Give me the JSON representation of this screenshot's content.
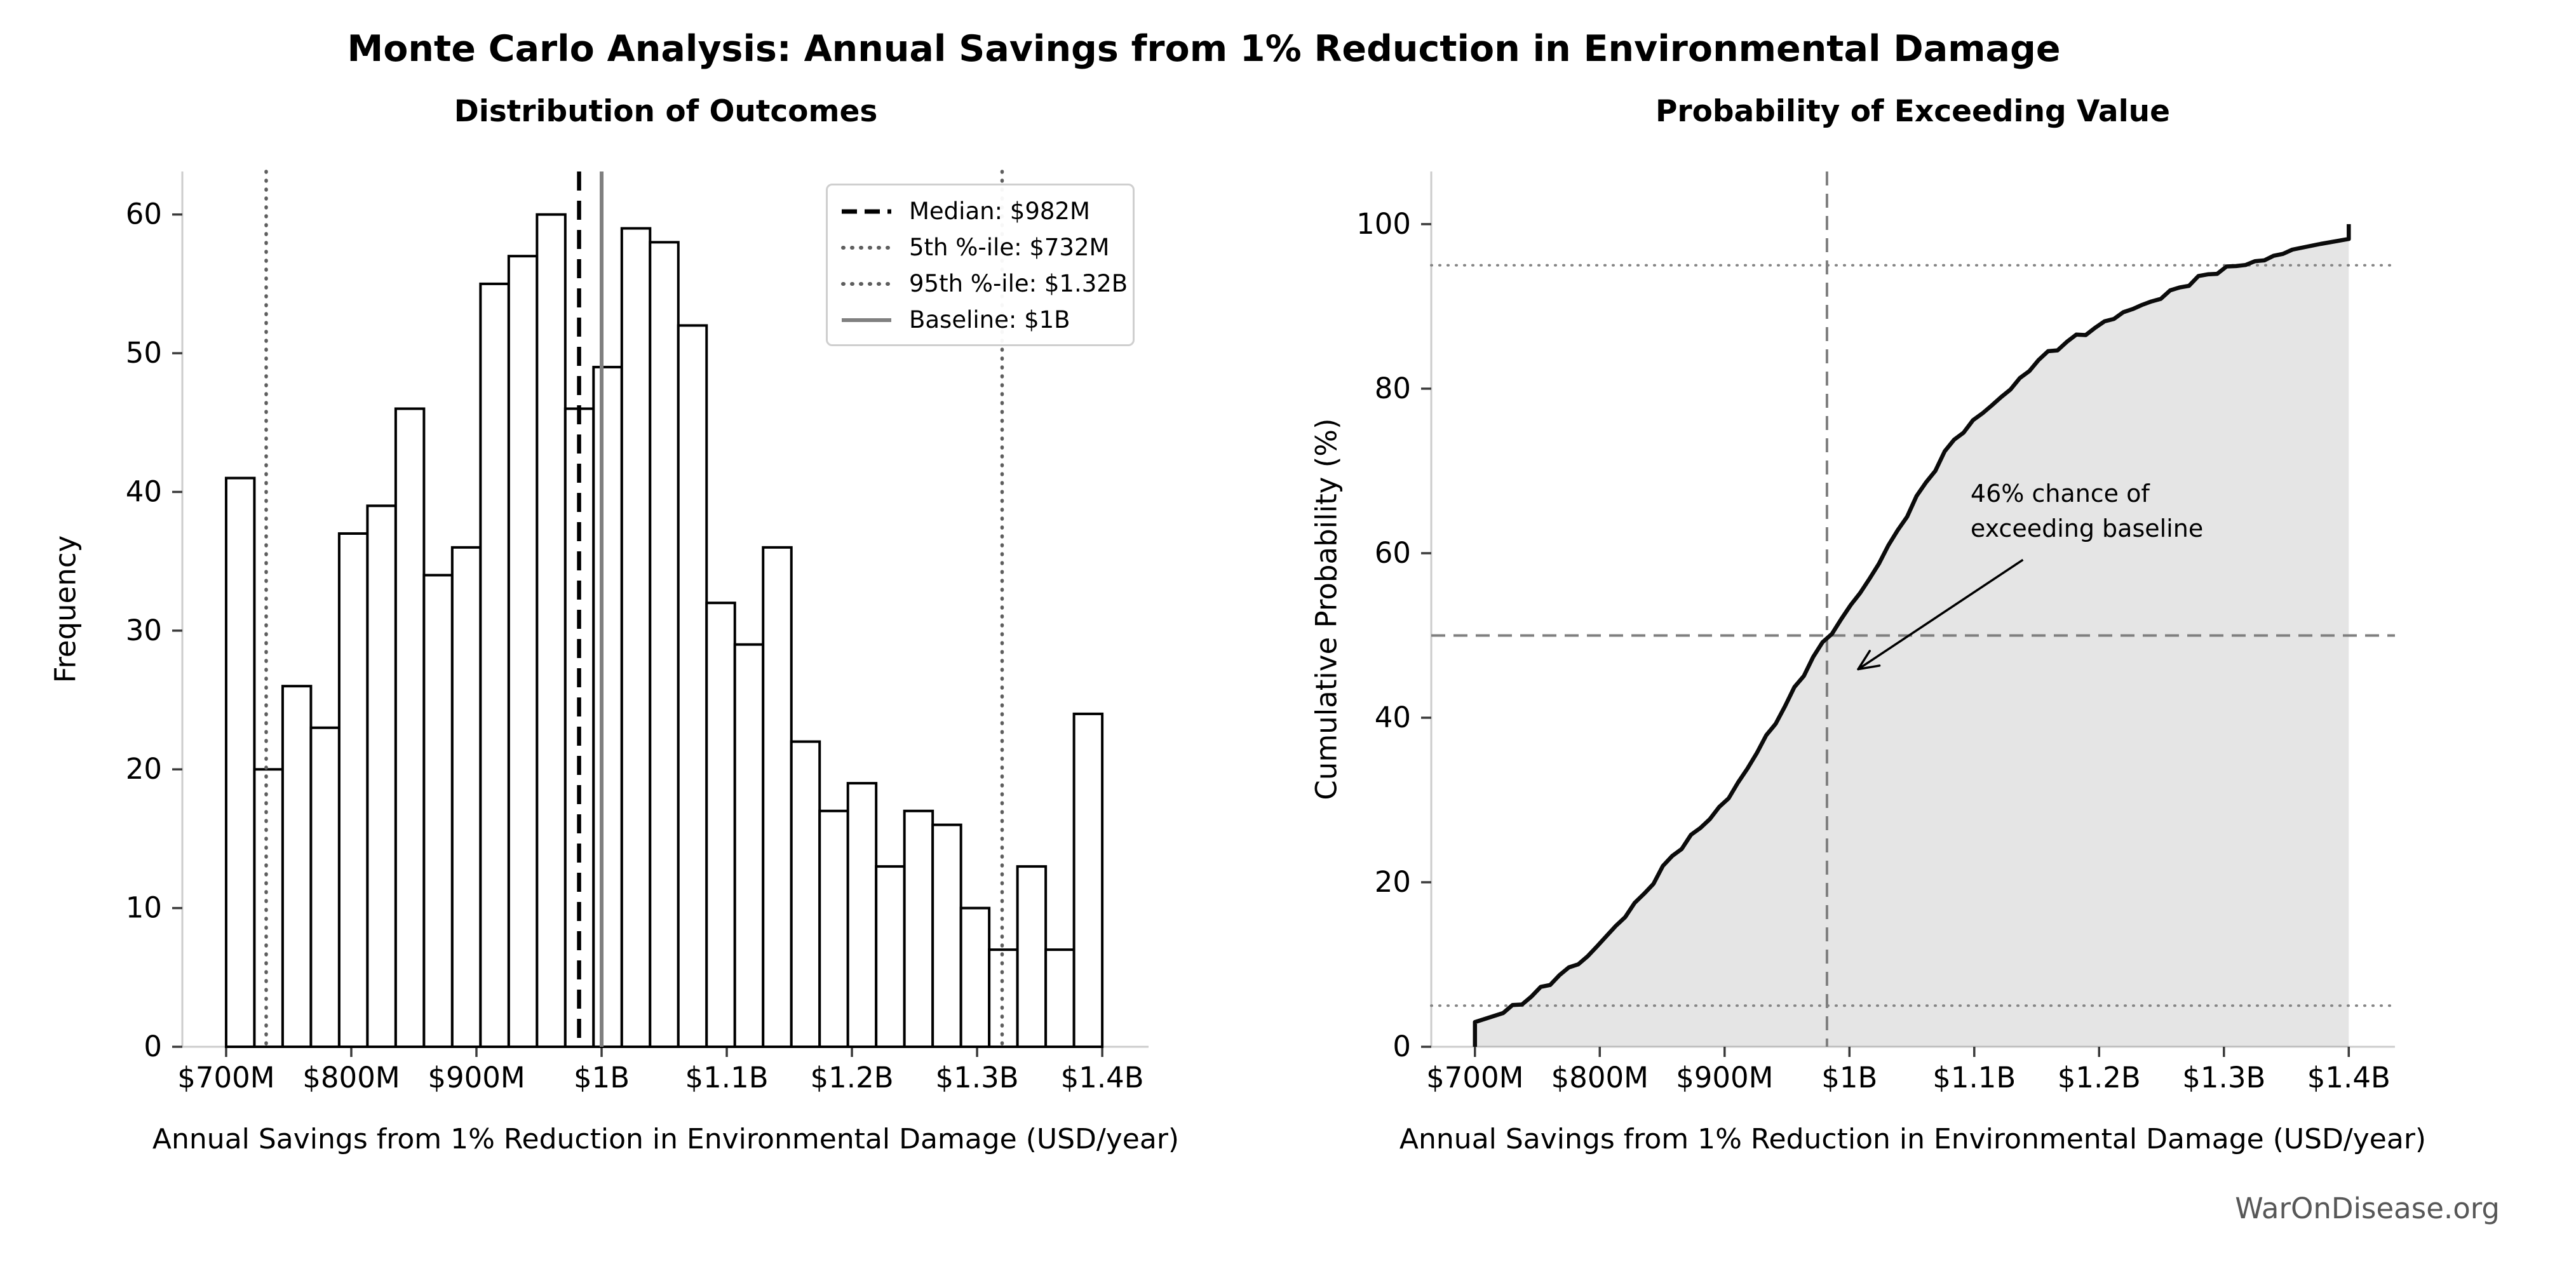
{
  "figure": {
    "suptitle": "Monte Carlo Analysis: Annual Savings from 1% Reduction in Environmental Damage",
    "watermark": "WarOnDisease.org",
    "background": "#ffffff"
  },
  "colors": {
    "bar_fill": "#ffffff",
    "bar_edge": "#000000",
    "spine": "#cccccc",
    "tick_mark": "#3a3a3a",
    "text": "#000000",
    "median_line": "#000000",
    "percentile_line": "#5e5e5e",
    "baseline_line": "#808080",
    "cdf_curve": "#0b0b0b",
    "cdf_fill": "rgba(0,0,0,0.10)",
    "crosshair": "#7f7f7f",
    "watermark": "#575757"
  },
  "chart_data": [
    {
      "type": "bar",
      "subtype": "histogram",
      "title": "Distribution of Outcomes",
      "xlabel": "Annual Savings from 1% Reduction in Environmental Damage (USD/year)",
      "ylabel": "Frequency",
      "x_ticks": [
        {
          "musd": 700,
          "label": "$700M"
        },
        {
          "musd": 800,
          "label": "$800M"
        },
        {
          "musd": 900,
          "label": "$900M"
        },
        {
          "musd": 1000,
          "label": "$1B"
        },
        {
          "musd": 1100,
          "label": "$1.1B"
        },
        {
          "musd": 1200,
          "label": "$1.2B"
        },
        {
          "musd": 1300,
          "label": "$1.3B"
        },
        {
          "musd": 1400,
          "label": "$1.4B"
        }
      ],
      "y_ticks": [
        0,
        10,
        20,
        30,
        40,
        50,
        60
      ],
      "xlim_musd": [
        665,
        1437
      ],
      "ylim": [
        0,
        63.1
      ],
      "bin_start_musd": 700,
      "bin_end_musd": 1400,
      "bin_counts": [
        41,
        20,
        26,
        23,
        37,
        39,
        46,
        34,
        36,
        55,
        57,
        60,
        46,
        49,
        59,
        58,
        52,
        32,
        29,
        36,
        22,
        17,
        19,
        13,
        17,
        16,
        10,
        7,
        13,
        7,
        24
      ],
      "grid": false,
      "legend_position": "upper-right",
      "reference_lines": [
        {
          "name": "median",
          "label": "Median: $982M",
          "value_musd": 982,
          "style": "dashed",
          "color": "#000000"
        },
        {
          "name": "p5",
          "label": "5th %-ile: $732M",
          "value_musd": 732,
          "style": "dotted",
          "color": "#5e5e5e"
        },
        {
          "name": "p95",
          "label": "95th %-ile: $1.32B",
          "value_musd": 1320,
          "style": "dotted",
          "color": "#5e5e5e"
        },
        {
          "name": "baseline",
          "label": "Baseline: $1B",
          "value_musd": 1000,
          "style": "solid",
          "color": "#808080"
        }
      ]
    },
    {
      "type": "line",
      "subtype": "cdf",
      "title": "Probability of Exceeding Value",
      "xlabel": "Annual Savings from 1% Reduction in Environmental Damage (USD/year)",
      "ylabel": "Cumulative Probability (%)",
      "x_ticks": [
        {
          "musd": 700,
          "label": "$700M"
        },
        {
          "musd": 800,
          "label": "$800M"
        },
        {
          "musd": 900,
          "label": "$900M"
        },
        {
          "musd": 1000,
          "label": "$1B"
        },
        {
          "musd": 1100,
          "label": "$1.1B"
        },
        {
          "musd": 1200,
          "label": "$1.2B"
        },
        {
          "musd": 1300,
          "label": "$1.3B"
        },
        {
          "musd": 1400,
          "label": "$1.4B"
        }
      ],
      "y_ticks": [
        0,
        20,
        40,
        60,
        80,
        100
      ],
      "xlim_musd": [
        665,
        1437
      ],
      "ylim": [
        0,
        106.4
      ],
      "grid": false,
      "cdf_points_musd_pct": [
        [
          700,
          0
        ],
        [
          700,
          3.0
        ],
        [
          722.6,
          4.1
        ],
        [
          745.2,
          6.1
        ],
        [
          767.7,
          8.7
        ],
        [
          790.3,
          11.0
        ],
        [
          812.9,
          14.7
        ],
        [
          835.5,
          18.6
        ],
        [
          858.1,
          23.2
        ],
        [
          880.6,
          26.6
        ],
        [
          903.2,
          30.2
        ],
        [
          925.8,
          35.7
        ],
        [
          948.4,
          41.4
        ],
        [
          971.0,
          47.4
        ],
        [
          993.5,
          52.0
        ],
        [
          1016.1,
          56.9
        ],
        [
          1038.7,
          62.8
        ],
        [
          1061.3,
          68.6
        ],
        [
          1083.9,
          73.8
        ],
        [
          1106.5,
          77.0
        ],
        [
          1129.0,
          79.9
        ],
        [
          1151.6,
          83.5
        ],
        [
          1174.2,
          85.7
        ],
        [
          1196.8,
          87.4
        ],
        [
          1219.4,
          89.3
        ],
        [
          1241.9,
          90.6
        ],
        [
          1264.5,
          92.3
        ],
        [
          1287.1,
          93.9
        ],
        [
          1309.7,
          94.9
        ],
        [
          1332.3,
          95.6
        ],
        [
          1354.8,
          96.9
        ],
        [
          1377.4,
          97.6
        ],
        [
          1400,
          98.2
        ],
        [
          1400,
          100
        ]
      ],
      "dotted_levels_pct": [
        5,
        95
      ],
      "crosshair": {
        "x_musd": 982,
        "y_pct": 50
      },
      "annotation": {
        "line1": "46% chance of",
        "line2": "exceeding baseline",
        "text_pos": {
          "musd": 1097,
          "pct": 69.3
        },
        "arrow_from": {
          "musd": 1139,
          "pct": 59.2
        },
        "arrow_to": {
          "musd": 1007,
          "pct": 45.9
        }
      }
    }
  ]
}
